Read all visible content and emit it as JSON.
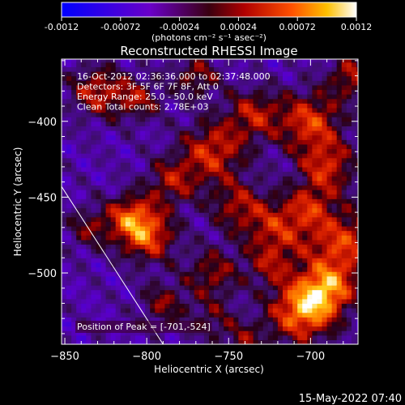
{
  "chart_data": {
    "type": "heatmap",
    "title": "Reconstructed RHESSI Image",
    "xlabel": "Heliocentric X (arcsec)",
    "ylabel": "Heliocentric Y (arcsec)",
    "xlim": [
      -852,
      -671
    ],
    "ylim": [
      -547,
      -359
    ],
    "x_ticks": [
      -850,
      -800,
      -750,
      -700
    ],
    "y_ticks": [
      -400,
      -450,
      -500
    ],
    "colorbar": {
      "ticks": [
        "-0.0012",
        "-0.00072",
        "-0.00024",
        "0.00024",
        "0.00072",
        "0.0012"
      ],
      "range": [
        -0.0012,
        0.0012
      ],
      "units": "(photons cm⁻² s⁻¹ asec⁻²)"
    },
    "info_lines": [
      "16-Oct-2012 02:36:36.000 to 02:37:48.000",
      "Detectors: 3F 5F 6F 7F 8F, Att 0",
      "Energy Range: 25.0 - 50.0 keV",
      "Clean      Total counts: 2.78E+03"
    ],
    "peak_label": "Position of Peak = [-701,-524]",
    "peak_position": [
      -701,
      -524
    ],
    "limb_line": [
      [
        -852,
        -443
      ],
      [
        -790,
        -547
      ]
    ],
    "blobs": [
      [
        -760,
        -420,
        0.00085,
        14
      ],
      [
        -735,
        -395,
        0.0007,
        12
      ],
      [
        -700,
        -400,
        0.0009,
        14
      ],
      [
        -690,
        -430,
        0.0008,
        12
      ],
      [
        -680,
        -480,
        0.0009,
        16
      ],
      [
        -720,
        -470,
        0.00075,
        14
      ],
      [
        -745,
        -455,
        0.0006,
        12
      ],
      [
        -705,
        -525,
        0.0012,
        14
      ],
      [
        -690,
        -510,
        0.001,
        12
      ],
      [
        -800,
        -475,
        0.001,
        12
      ],
      [
        -810,
        -462,
        0.0008,
        10
      ],
      [
        -785,
        -440,
        0.00065,
        11
      ],
      [
        -830,
        -380,
        0.00075,
        12
      ],
      [
        -805,
        -385,
        0.0006,
        10
      ],
      [
        -770,
        -370,
        0.0006,
        10
      ],
      [
        -835,
        -470,
        0.0005,
        10
      ],
      [
        -760,
        -500,
        0.0006,
        12
      ],
      [
        -725,
        -495,
        0.0005,
        10
      ],
      [
        -790,
        -520,
        0.00055,
        10
      ],
      [
        -760,
        -530,
        0.0004,
        10
      ],
      [
        -675,
        -370,
        0.0007,
        10
      ],
      [
        -740,
        -545,
        0.0005,
        10
      ],
      [
        -700,
        -455,
        0.00055,
        10
      ]
    ]
  },
  "footer": {
    "timestamp": "15-May-2022 07:40"
  }
}
